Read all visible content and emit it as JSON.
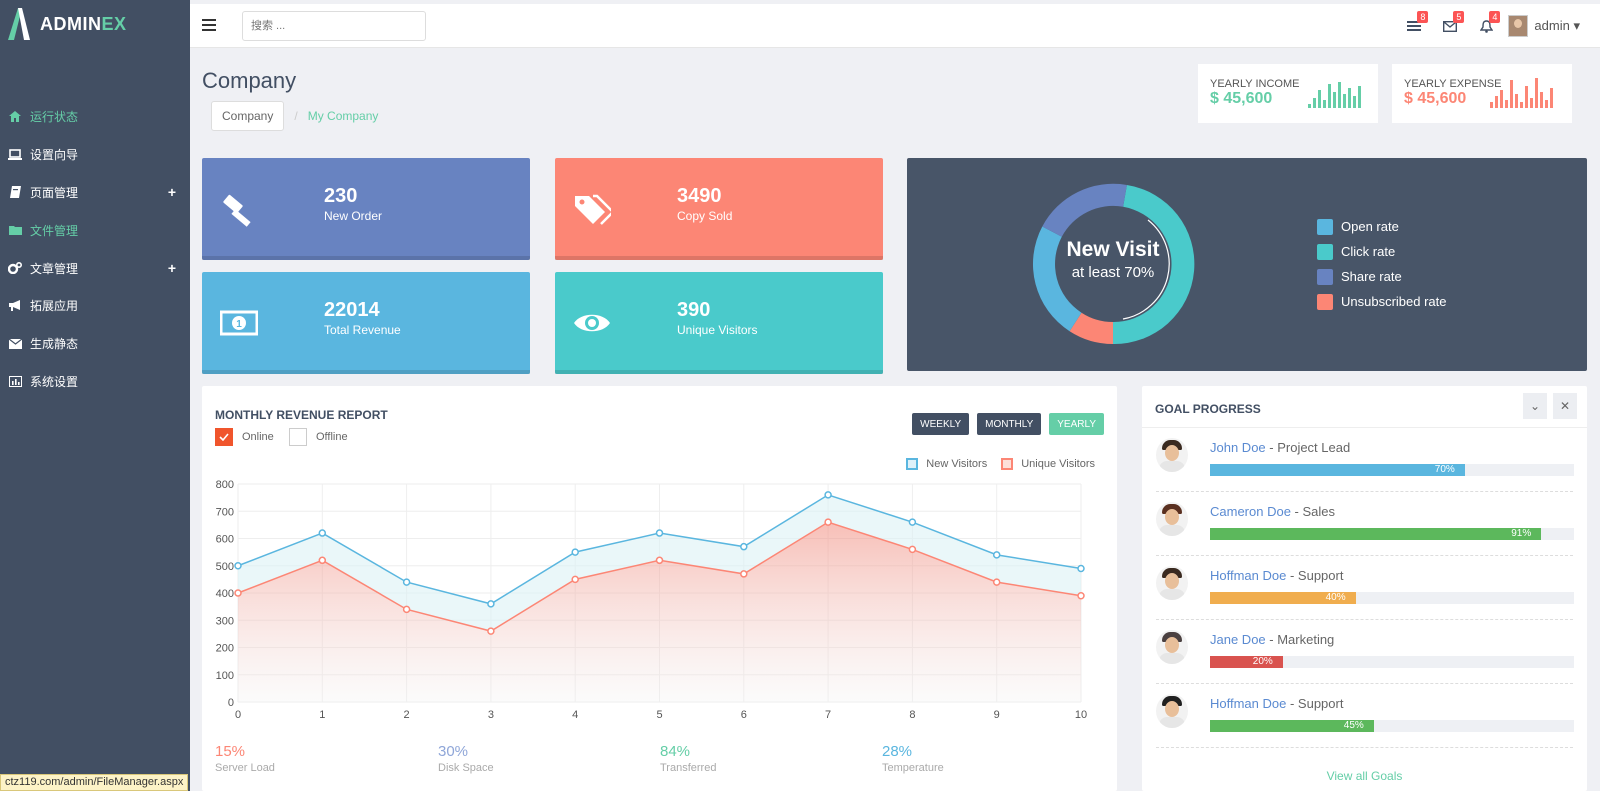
{
  "app": {
    "brand_a": "ADMIN",
    "brand_b": "EX"
  },
  "sidebar": {
    "items": [
      {
        "label": "运行状态",
        "icon": "home-icon",
        "active": true,
        "expand": ""
      },
      {
        "label": "设置向导",
        "icon": "laptop-icon",
        "active": false,
        "expand": ""
      },
      {
        "label": "页面管理",
        "icon": "book-icon",
        "active": false,
        "expand": "+"
      },
      {
        "label": "文件管理",
        "icon": "folder-icon",
        "active": true,
        "expand": ""
      },
      {
        "label": "文章管理",
        "icon": "cogs-icon",
        "active": false,
        "expand": "+"
      },
      {
        "label": "拓展应用",
        "icon": "bullhorn-icon",
        "active": false,
        "expand": ""
      },
      {
        "label": "生成静态",
        "icon": "envelope-icon",
        "active": false,
        "expand": ""
      },
      {
        "label": "系统设置",
        "icon": "bar-chart-icon",
        "active": false,
        "expand": ""
      }
    ]
  },
  "header": {
    "search_placeholder": "搜索 ...",
    "badges": {
      "tasks": "8",
      "mail": "5",
      "alerts": "4"
    },
    "user": "admin"
  },
  "page": {
    "title": "Company",
    "breadcrumb": [
      "Company",
      "My Company"
    ]
  },
  "yearly": {
    "income": {
      "label": "YEARLY INCOME",
      "value": "$ 45,600",
      "color": "#65cea7"
    },
    "expense": {
      "label": "YEARLY EXPENSE",
      "value": "$ 45,600",
      "color": "#fc8675"
    }
  },
  "tiles": [
    {
      "value": "230",
      "label": "New Order",
      "color": "#6883c1",
      "icon": "gavel-icon"
    },
    {
      "value": "3490",
      "label": "Copy Sold",
      "color": "#fc8675",
      "icon": "tags-icon"
    },
    {
      "value": "22014",
      "label": "Total Revenue",
      "color": "#5ab6df",
      "icon": "money-icon"
    },
    {
      "value": "390",
      "label": "Unique Visitors",
      "color": "#4acacb",
      "icon": "eye-icon"
    }
  ],
  "visit": {
    "title": "New Visit",
    "subtitle": "at least 70%",
    "legend": [
      {
        "label": "Open rate",
        "color": "#5ab6df"
      },
      {
        "label": "Click rate",
        "color": "#4acacb"
      },
      {
        "label": "Share rate",
        "color": "#6883c1"
      },
      {
        "label": "Unsubscribed rate",
        "color": "#fc8675"
      }
    ]
  },
  "revenue": {
    "title": "MONTHLY REVENUE REPORT",
    "checks": [
      "Online",
      "Offline"
    ],
    "buttons": [
      "WEEKLY",
      "MONTHLY",
      "YEARLY"
    ],
    "stats": [
      {
        "value": "15%",
        "label": "Server Load",
        "color": "#fc8675"
      },
      {
        "value": "30%",
        "label": "Disk Space",
        "color": "#8fa6d8"
      },
      {
        "value": "84%",
        "label": "Transferred",
        "color": "#65cea7"
      },
      {
        "value": "28%",
        "label": "Temperature",
        "color": "#5ab6df"
      }
    ]
  },
  "chart_data": {
    "type": "area",
    "x": [
      0,
      1,
      2,
      3,
      4,
      5,
      6,
      7,
      8,
      9,
      10
    ],
    "ylim": [
      0,
      800
    ],
    "yticks": [
      0,
      100,
      200,
      300,
      400,
      500,
      600,
      700,
      800
    ],
    "grid": true,
    "legend_position": "top-right",
    "series": [
      {
        "name": "New Visitors",
        "color": "#5ab6df",
        "values": [
          500,
          620,
          440,
          360,
          550,
          620,
          570,
          760,
          660,
          540,
          490
        ]
      },
      {
        "name": "Unique Visitors",
        "color": "#fc8675",
        "values": [
          400,
          520,
          340,
          260,
          450,
          520,
          470,
          660,
          560,
          440,
          390
        ]
      }
    ]
  },
  "goals": {
    "title": "GOAL PROGRESS",
    "view_all": "View all Goals",
    "items": [
      {
        "name": "John Doe",
        "role": " - Project Lead",
        "pct": "70%",
        "value": 70,
        "color": "#5ab6df",
        "hair": "#3a2a20"
      },
      {
        "name": "Cameron Doe",
        "role": " - Sales",
        "pct": "91%",
        "value": 91,
        "color": "#5cb85c",
        "hair": "#5a3020"
      },
      {
        "name": "Hoffman Doe",
        "role": " - Support",
        "pct": "40%",
        "value": 40,
        "color": "#f0ad4e",
        "hair": "#3a2a20"
      },
      {
        "name": "Jane Doe",
        "role": " - Marketing",
        "pct": "20%",
        "value": 20,
        "color": "#d9534f",
        "hair": "#4a4040"
      },
      {
        "name": "Hoffman Doe",
        "role": " - Support",
        "pct": "45%",
        "value": 45,
        "color": "#5cb85c",
        "hair": "#202020"
      }
    ]
  },
  "statusbar": "ctz119.com/admin/FileManager.aspx"
}
